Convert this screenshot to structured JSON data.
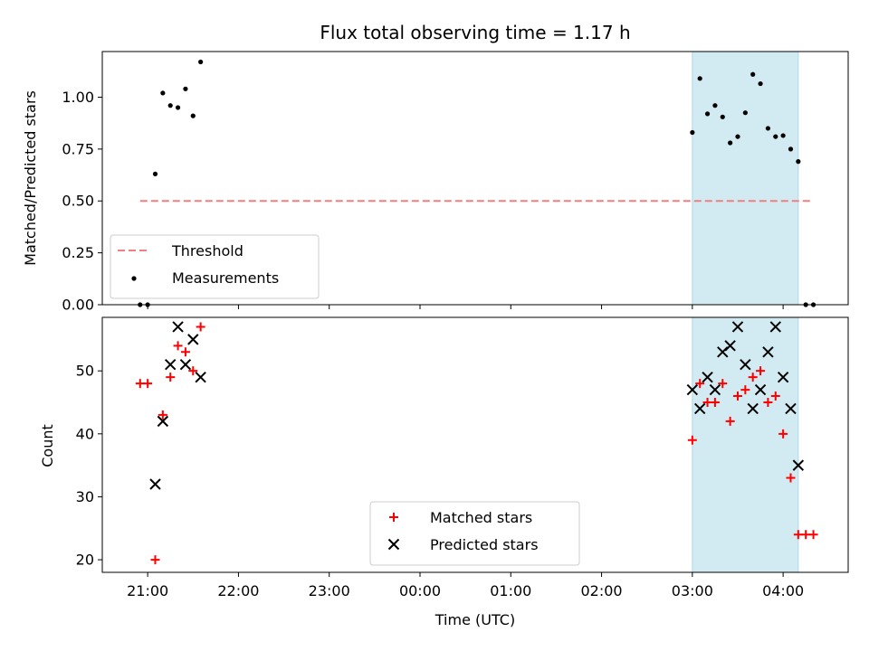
{
  "chart_data": [
    {
      "type": "scatter",
      "title": "Flux total observing time = 1.17 h",
      "ylabel": "Matched/Predicted stars",
      "xlabel": "",
      "x_range": [
        "20:30",
        "04:43"
      ],
      "ylim": [
        0,
        1.22
      ],
      "yticks": [
        0.0,
        0.25,
        0.5,
        0.75,
        1.0
      ],
      "ytick_labels": [
        "0.00",
        "0.25",
        "0.50",
        "0.75",
        "1.00"
      ],
      "shaded_region": {
        "x": [
          "03:00",
          "04:10"
        ],
        "color": "#add8e6"
      },
      "legend_placement": "lower-left",
      "series": [
        {
          "name": "Threshold",
          "style": "dashed-line",
          "color": "#f08080",
          "points": [
            {
              "x": "20:55",
              "y": 0.5
            },
            {
              "x": "04:20",
              "y": 0.5
            }
          ]
        },
        {
          "name": "Measurements",
          "style": "dot",
          "color": "#000000",
          "points": [
            {
              "x": "20:55",
              "y": 0.0
            },
            {
              "x": "21:00",
              "y": 0.0
            },
            {
              "x": "21:05",
              "y": 0.63
            },
            {
              "x": "21:10",
              "y": 1.02
            },
            {
              "x": "21:15",
              "y": 0.96
            },
            {
              "x": "21:20",
              "y": 0.95
            },
            {
              "x": "21:25",
              "y": 1.04
            },
            {
              "x": "21:30",
              "y": 0.91
            },
            {
              "x": "21:35",
              "y": 1.17
            },
            {
              "x": "03:00",
              "y": 0.83
            },
            {
              "x": "03:05",
              "y": 1.09
            },
            {
              "x": "03:10",
              "y": 0.92
            },
            {
              "x": "03:15",
              "y": 0.96
            },
            {
              "x": "03:20",
              "y": 0.905
            },
            {
              "x": "03:25",
              "y": 0.78
            },
            {
              "x": "03:30",
              "y": 0.81
            },
            {
              "x": "03:35",
              "y": 0.925
            },
            {
              "x": "03:40",
              "y": 1.11
            },
            {
              "x": "03:45",
              "y": 1.065
            },
            {
              "x": "03:50",
              "y": 0.85
            },
            {
              "x": "03:55",
              "y": 0.81
            },
            {
              "x": "04:00",
              "y": 0.815
            },
            {
              "x": "04:05",
              "y": 0.75
            },
            {
              "x": "04:10",
              "y": 0.69
            },
            {
              "x": "04:15",
              "y": 0.0
            },
            {
              "x": "04:20",
              "y": 0.0
            }
          ]
        }
      ]
    },
    {
      "type": "scatter",
      "title": "",
      "ylabel": "Count",
      "xlabel": "Time (UTC)",
      "x_range": [
        "20:30",
        "04:43"
      ],
      "xticks": [
        "21:00",
        "22:00",
        "23:00",
        "00:00",
        "01:00",
        "02:00",
        "03:00",
        "04:00"
      ],
      "ylim": [
        18,
        58.5
      ],
      "yticks": [
        20,
        30,
        40,
        50
      ],
      "ytick_labels": [
        "20",
        "30",
        "40",
        "50"
      ],
      "shaded_region": {
        "x": [
          "03:00",
          "04:10"
        ],
        "color": "#add8e6"
      },
      "legend_placement": "lower-center",
      "series": [
        {
          "name": "Matched stars",
          "style": "plus",
          "color": "#ff0000",
          "points": [
            {
              "x": "20:55",
              "y": 48
            },
            {
              "x": "21:00",
              "y": 48
            },
            {
              "x": "21:05",
              "y": 20
            },
            {
              "x": "21:10",
              "y": 43
            },
            {
              "x": "21:15",
              "y": 49
            },
            {
              "x": "21:20",
              "y": 54
            },
            {
              "x": "21:25",
              "y": 53
            },
            {
              "x": "21:30",
              "y": 50
            },
            {
              "x": "21:35",
              "y": 57
            },
            {
              "x": "03:00",
              "y": 39
            },
            {
              "x": "03:05",
              "y": 48
            },
            {
              "x": "03:10",
              "y": 45
            },
            {
              "x": "03:15",
              "y": 45
            },
            {
              "x": "03:20",
              "y": 48
            },
            {
              "x": "03:25",
              "y": 42
            },
            {
              "x": "03:30",
              "y": 46
            },
            {
              "x": "03:35",
              "y": 47
            },
            {
              "x": "03:40",
              "y": 49
            },
            {
              "x": "03:45",
              "y": 50
            },
            {
              "x": "03:50",
              "y": 45
            },
            {
              "x": "03:55",
              "y": 46
            },
            {
              "x": "04:00",
              "y": 40
            },
            {
              "x": "04:05",
              "y": 33
            },
            {
              "x": "04:10",
              "y": 24
            },
            {
              "x": "04:15",
              "y": 24
            },
            {
              "x": "04:20",
              "y": 24
            }
          ]
        },
        {
          "name": "Predicted stars",
          "style": "x",
          "color": "#000000",
          "points": [
            {
              "x": "21:05",
              "y": 32
            },
            {
              "x": "21:10",
              "y": 42
            },
            {
              "x": "21:15",
              "y": 51
            },
            {
              "x": "21:20",
              "y": 57
            },
            {
              "x": "21:25",
              "y": 51
            },
            {
              "x": "21:30",
              "y": 55
            },
            {
              "x": "21:35",
              "y": 49
            },
            {
              "x": "03:00",
              "y": 47
            },
            {
              "x": "03:05",
              "y": 44
            },
            {
              "x": "03:10",
              "y": 49
            },
            {
              "x": "03:15",
              "y": 47
            },
            {
              "x": "03:20",
              "y": 53
            },
            {
              "x": "03:25",
              "y": 54
            },
            {
              "x": "03:30",
              "y": 57
            },
            {
              "x": "03:35",
              "y": 51
            },
            {
              "x": "03:40",
              "y": 44
            },
            {
              "x": "03:45",
              "y": 47
            },
            {
              "x": "03:50",
              "y": 53
            },
            {
              "x": "03:55",
              "y": 57
            },
            {
              "x": "04:00",
              "y": 49
            },
            {
              "x": "04:05",
              "y": 44
            },
            {
              "x": "04:10",
              "y": 35
            }
          ]
        }
      ]
    }
  ]
}
